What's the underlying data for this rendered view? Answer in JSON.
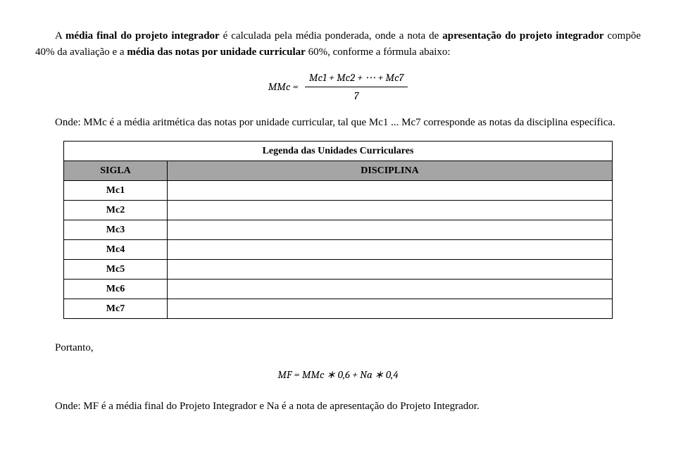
{
  "para1_parts": {
    "a": "A ",
    "b": "média final do projeto integrador",
    "c": " é calculada pela média ponderada, onde a nota de ",
    "d": "apresentação do projeto integrador",
    "e": " compõe 40% da avaliação e a ",
    "f": "média das notas por unidade curricular",
    "g": " 60%, conforme a fórmula abaixo:"
  },
  "formula1": {
    "lhs": "MMc =",
    "num": "Mc1 + Mc2 + ⋯ + Mc7",
    "den": "7"
  },
  "para2": "Onde: MMc é a média aritmética das notas por unidade curricular, tal que Mc1 ... Mc7 corresponde as notas da disciplina específica.",
  "table": {
    "title": "Legenda das Unidades Curriculares",
    "col_sigla": "SIGLA",
    "col_disc": "DISCIPLINA",
    "rows": [
      "Mc1",
      "Mc2",
      "Mc3",
      "Mc4",
      "Mc5",
      "Mc6",
      "Mc7"
    ]
  },
  "portanto": "Portanto,",
  "formula2": "MF = MMc ∗ 0,6 + Na ∗ 0,4",
  "para3": "Onde: MF é a média final do Projeto Integrador e Na é a nota de apresentação do Projeto Integrador."
}
